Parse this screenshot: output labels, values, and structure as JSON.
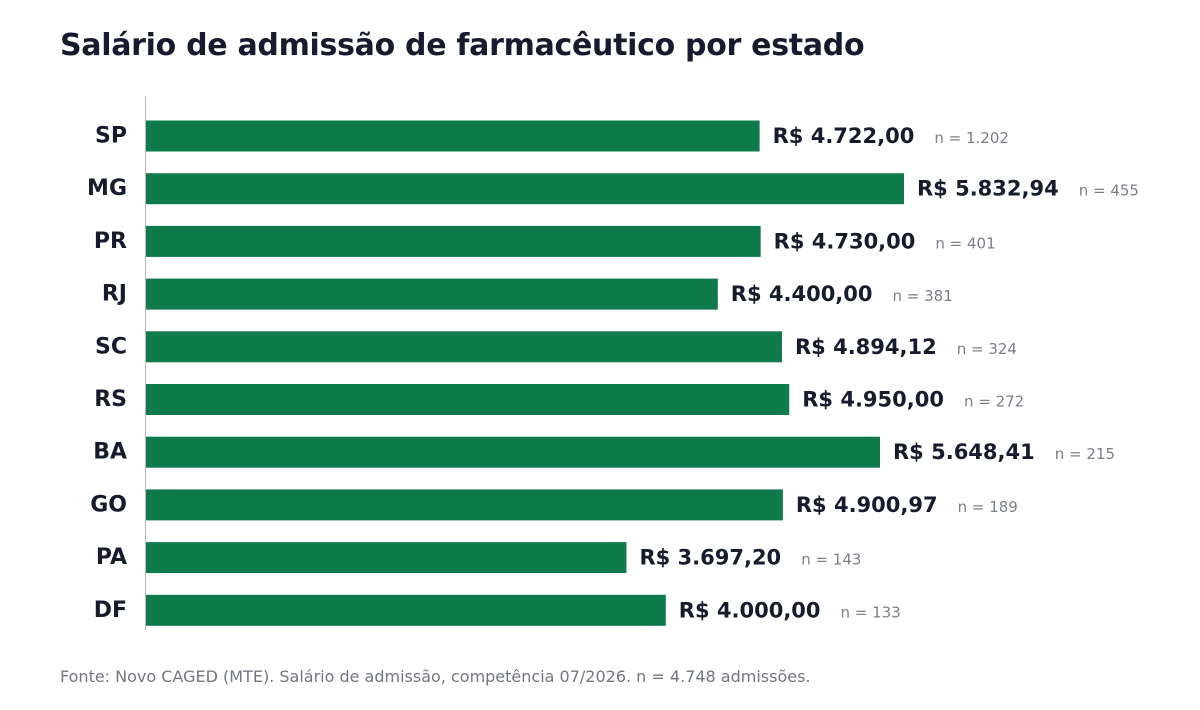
{
  "title": "Salário de admissão de farmacêutico por estado",
  "footnote": "Fonte: Novo CAGED (MTE). Salário de admissão, competência 07/2026. n = 4.748 admissões.",
  "colors": {
    "bar": "#0f7b4b",
    "axis": "#b5b8be",
    "text": "#161b2e",
    "muted": "#7b7f88"
  },
  "chart_data": {
    "type": "bar",
    "orientation": "horizontal",
    "title": "Salário de admissão de farmacêutico por estado",
    "xlabel": "",
    "ylabel": "",
    "categories": [
      "SP",
      "MG",
      "PR",
      "RJ",
      "SC",
      "RS",
      "BA",
      "GO",
      "PA",
      "DF"
    ],
    "values": [
      4722.0,
      5832.94,
      4730.0,
      4400.0,
      4894.12,
      4950.0,
      5648.41,
      4900.97,
      3697.2,
      4000.0
    ],
    "value_labels": [
      "R$ 4.722,00",
      "R$ 5.832,94",
      "R$ 4.730,00",
      "R$ 4.400,00",
      "R$ 4.894,12",
      "R$ 4.950,00",
      "R$ 5.648,41",
      "R$ 4.900,97",
      "R$ 3.697,20",
      "R$ 4.000,00"
    ],
    "n_labels": [
      "n = 1.202",
      "n = 455",
      "n = 401",
      "n = 381",
      "n = 324",
      "n = 272",
      "n = 215",
      "n = 189",
      "n = 143",
      "n = 133"
    ],
    "xlim": [
      0,
      5832.94
    ],
    "grid": false,
    "legend": "none"
  }
}
